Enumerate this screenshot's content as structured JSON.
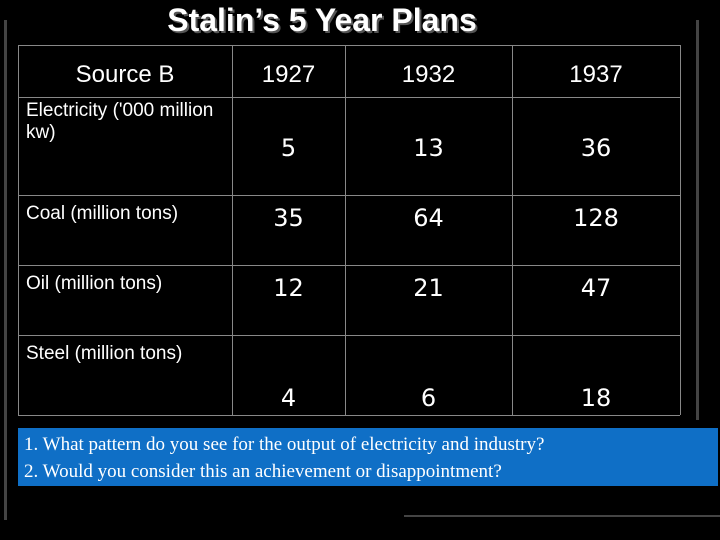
{
  "title": "Stalin’s 5 Year Plans",
  "table": {
    "header": [
      "Source B",
      "1927",
      "1932",
      "1937"
    ],
    "rows": [
      [
        "Electricity ('000 million kw)",
        5,
        13,
        36
      ],
      [
        "Coal (million tons)",
        35,
        64,
        128
      ],
      [
        "Oil (million tons)",
        12,
        21,
        47
      ],
      [
        "Steel (million tons)",
        4,
        6,
        18
      ]
    ]
  },
  "questions": [
    "1. What pattern do you see for the output of electricity and industry?",
    "2. Would you consider this an achievement or disappointment?"
  ]
}
